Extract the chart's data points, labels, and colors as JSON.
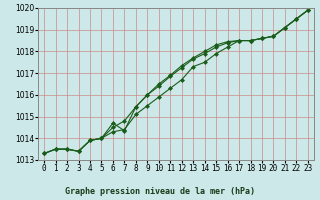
{
  "title": "Graphe pression niveau de la mer (hPa)",
  "xlabel_hours": [
    0,
    1,
    2,
    3,
    4,
    5,
    6,
    7,
    8,
    9,
    10,
    11,
    12,
    13,
    14,
    15,
    16,
    17,
    18,
    19,
    20,
    21,
    22,
    23
  ],
  "line1": [
    1013.3,
    1013.5,
    1013.5,
    1013.4,
    1013.9,
    1014.0,
    1014.3,
    1014.4,
    1015.1,
    1015.5,
    1015.9,
    1016.3,
    1016.7,
    1017.3,
    1017.5,
    1017.9,
    1018.2,
    1018.5,
    1018.5,
    1018.6,
    1018.7,
    1019.1,
    1019.5,
    1019.9
  ],
  "line2": [
    1013.3,
    1013.5,
    1013.5,
    1013.4,
    1013.9,
    1014.0,
    1014.7,
    1014.35,
    1015.45,
    1016.0,
    1016.5,
    1016.9,
    1017.35,
    1017.7,
    1018.0,
    1018.3,
    1018.45,
    1018.5,
    1018.5,
    1018.6,
    1018.7,
    1019.1,
    1019.5,
    1019.9
  ],
  "line3": [
    1013.3,
    1013.5,
    1013.5,
    1013.4,
    1013.9,
    1014.0,
    1014.5,
    1014.8,
    1015.45,
    1016.0,
    1016.4,
    1016.85,
    1017.25,
    1017.65,
    1017.9,
    1018.2,
    1018.4,
    1018.5,
    1018.5,
    1018.6,
    1018.7,
    1019.1,
    1019.5,
    1019.9
  ],
  "ylim": [
    1013.0,
    1020.0
  ],
  "yticks": [
    1013,
    1014,
    1015,
    1016,
    1017,
    1018,
    1019,
    1020
  ],
  "line_color": "#1a5c1a",
  "bg_color": "#cce8e8",
  "grid_color": "#cc8888",
  "marker": "D",
  "markersize": 2.0,
  "linewidth": 0.8,
  "title_fontsize": 6.0,
  "tick_fontsize": 5.5
}
